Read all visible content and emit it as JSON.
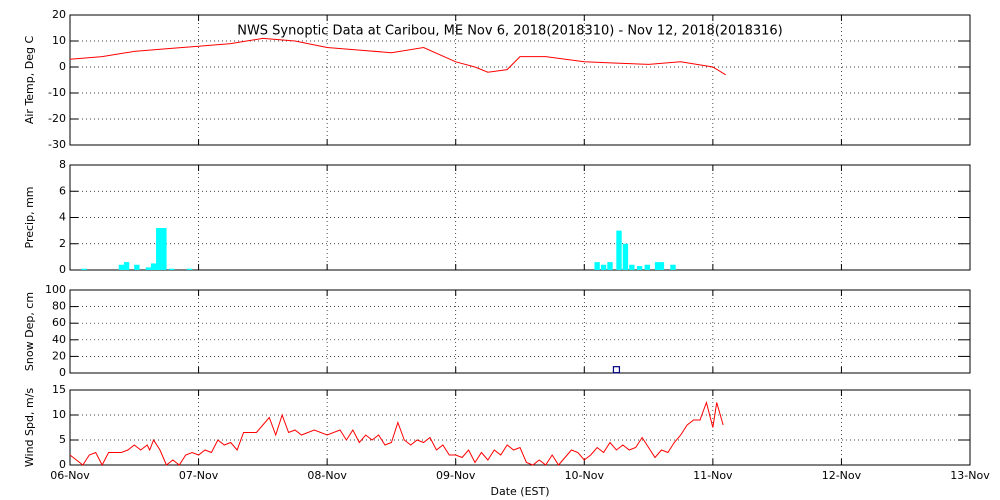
{
  "chart_data": [
    {
      "type": "line",
      "title": "NWS Synoptic Data at Caribou, ME   Nov  6, 2018(2018310) - Nov 12, 2018(2018316)",
      "ylabel": "Air Temp, Deg C",
      "color": "#ff0000",
      "x": [
        6.0,
        6.25,
        6.5,
        6.75,
        7.0,
        7.25,
        7.5,
        7.75,
        8.0,
        8.25,
        8.5,
        8.75,
        9.0,
        9.15,
        9.25,
        9.4,
        9.5,
        9.7,
        10.0,
        10.25,
        10.5,
        10.75,
        11.0,
        11.1
      ],
      "values": [
        3,
        4,
        6,
        7,
        8,
        9,
        11,
        10,
        7.5,
        6.5,
        5.5,
        7.5,
        2,
        0,
        -2,
        -1,
        4,
        4,
        2,
        1.5,
        1,
        2,
        0,
        -3
      ],
      "ylim": [
        -30,
        20
      ],
      "yticks": [
        -30,
        -20,
        -10,
        0,
        10,
        20
      ],
      "grid": true
    },
    {
      "type": "bar",
      "ylabel": "Precip, mm",
      "color": "#00ffff",
      "x": [
        6.11,
        6.4,
        6.44,
        6.52,
        6.61,
        6.65,
        6.69,
        6.73,
        6.79,
        6.93,
        10.1,
        10.15,
        10.2,
        10.27,
        10.32,
        10.37,
        10.43,
        10.49,
        10.57,
        10.6,
        10.69
      ],
      "values": [
        0.1,
        0.4,
        0.6,
        0.4,
        0.2,
        0.5,
        3.2,
        3.2,
        0.1,
        0.1,
        0.6,
        0.4,
        0.6,
        3.0,
        2.0,
        0.4,
        0.3,
        0.4,
        0.6,
        0.6,
        0.4
      ],
      "ylim": [
        0,
        8
      ],
      "yticks": [
        0,
        2,
        4,
        6,
        8
      ],
      "grid": true
    },
    {
      "type": "scatter",
      "ylabel": "Snow Dep, cm",
      "color": "#000080",
      "x": [
        10.25
      ],
      "values": [
        4
      ],
      "ylim": [
        0,
        100
      ],
      "yticks": [
        0,
        20,
        40,
        60,
        80,
        100
      ],
      "grid": true
    },
    {
      "type": "line",
      "ylabel": "Wind Spd, m/s",
      "xlabel": "Date (EST)",
      "color": "#ff0000",
      "x": [
        6.0,
        6.05,
        6.1,
        6.15,
        6.2,
        6.25,
        6.3,
        6.4,
        6.45,
        6.5,
        6.55,
        6.6,
        6.62,
        6.65,
        6.7,
        6.75,
        6.8,
        6.85,
        6.9,
        6.95,
        7.0,
        7.05,
        7.1,
        7.15,
        7.2,
        7.25,
        7.3,
        7.35,
        7.45,
        7.55,
        7.6,
        7.65,
        7.7,
        7.75,
        7.8,
        7.9,
        8.0,
        8.1,
        8.15,
        8.2,
        8.25,
        8.3,
        8.35,
        8.4,
        8.45,
        8.5,
        8.55,
        8.6,
        8.65,
        8.7,
        8.75,
        8.8,
        8.85,
        8.9,
        8.95,
        9.0,
        9.05,
        9.1,
        9.15,
        9.2,
        9.25,
        9.3,
        9.35,
        9.4,
        9.45,
        9.5,
        9.55,
        9.6,
        9.65,
        9.7,
        9.75,
        9.8,
        9.85,
        9.9,
        9.95,
        10.0,
        10.05,
        10.1,
        10.15,
        10.2,
        10.25,
        10.3,
        10.35,
        10.4,
        10.45,
        10.5,
        10.55,
        10.6,
        10.65,
        10.7,
        10.75,
        10.8,
        10.85,
        10.9,
        10.95,
        11.0,
        11.03,
        11.08
      ],
      "values": [
        2,
        1,
        0,
        2,
        2.5,
        0,
        2.5,
        2.5,
        3,
        4,
        3,
        4,
        3,
        5,
        3,
        0,
        1,
        0,
        2,
        2.5,
        2,
        3,
        2.5,
        5,
        4,
        4.5,
        3,
        6.5,
        6.5,
        9.5,
        6,
        10,
        6.5,
        7,
        6,
        7,
        6,
        7,
        5,
        7,
        4.5,
        6,
        5,
        6,
        4,
        4.5,
        8.5,
        5,
        4,
        5,
        4.5,
        5.5,
        3,
        4,
        2,
        2,
        1.5,
        3,
        0.5,
        2.5,
        1,
        3,
        2,
        4,
        3,
        3.5,
        0.5,
        0,
        1,
        0,
        2,
        0,
        1.5,
        3,
        2.5,
        1,
        2,
        3.5,
        2.5,
        4.5,
        3,
        4,
        3,
        3.5,
        5.5,
        3.5,
        1.5,
        3,
        2.5,
        4.5,
        6,
        8,
        9,
        9,
        12.5,
        7.5,
        12.5,
        8
      ],
      "xlim": [
        6,
        13
      ],
      "xticks": [
        {
          "value": 6,
          "label": "06-Nov"
        },
        {
          "value": 7,
          "label": "07-Nov"
        },
        {
          "value": 8,
          "label": "08-Nov"
        },
        {
          "value": 9,
          "label": "09-Nov"
        },
        {
          "value": 10,
          "label": "10-Nov"
        },
        {
          "value": 11,
          "label": "11-Nov"
        },
        {
          "value": 12,
          "label": "12-Nov"
        },
        {
          "value": 13,
          "label": "13-Nov"
        }
      ],
      "ylim": [
        0,
        15
      ],
      "yticks": [
        0,
        5,
        10,
        15
      ],
      "grid": true
    }
  ]
}
